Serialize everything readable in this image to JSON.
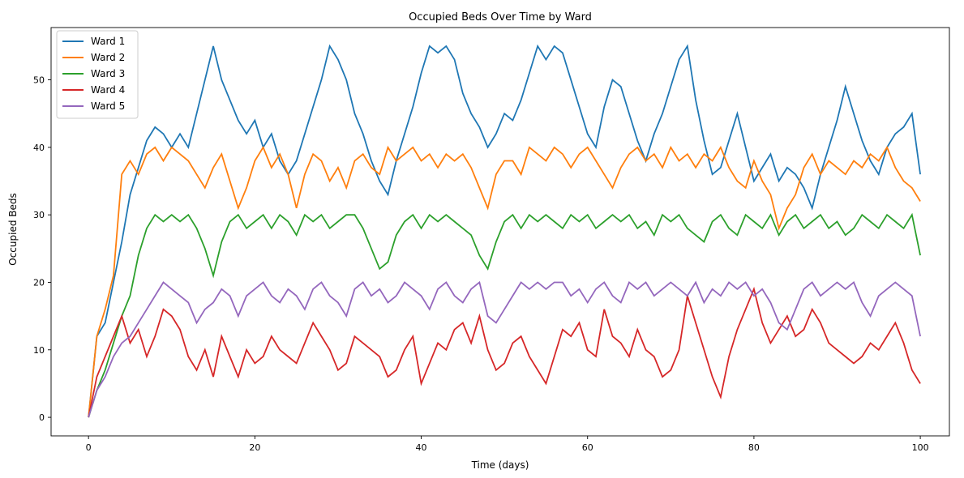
{
  "chart_data": {
    "type": "line",
    "title": "Occupied Beds Over Time by Ward",
    "xlabel": "Time (days)",
    "ylabel": "Occupied Beds",
    "xlim": [
      -4.5,
      103.5
    ],
    "ylim": [
      -2.75,
      57.75
    ],
    "xticks": [
      0,
      20,
      40,
      60,
      80,
      100
    ],
    "yticks": [
      0,
      10,
      20,
      30,
      40,
      50
    ],
    "grid": false,
    "legend_position": "top-left",
    "series": [
      {
        "name": "Ward 1",
        "color": "#1f77b4",
        "x": [
          0,
          1,
          2,
          3,
          4,
          5,
          6,
          7,
          8,
          9,
          10,
          11,
          12,
          13,
          14,
          15,
          16,
          17,
          18,
          19,
          20,
          21,
          22,
          23,
          24,
          25,
          26,
          27,
          28,
          29,
          30,
          31,
          32,
          33,
          34,
          35,
          36,
          37,
          38,
          39,
          40,
          41,
          42,
          43,
          44,
          45,
          46,
          47,
          48,
          49,
          50,
          51,
          52,
          53,
          54,
          55,
          56,
          57,
          58,
          59,
          60,
          61,
          62,
          63,
          64,
          65,
          66,
          67,
          68,
          69,
          70,
          71,
          72,
          73,
          74,
          75,
          76,
          77,
          78,
          79,
          80,
          81,
          82,
          83,
          84,
          85,
          86,
          87,
          88,
          89,
          90,
          91,
          92,
          93,
          94,
          95,
          96,
          97,
          98,
          99,
          100
        ],
        "y": [
          0,
          12,
          14,
          20,
          26,
          33,
          37,
          41,
          43,
          42,
          40,
          42,
          40,
          45,
          50,
          55,
          50,
          47,
          44,
          42,
          44,
          40,
          42,
          38,
          36,
          38,
          42,
          46,
          50,
          55,
          53,
          50,
          45,
          42,
          38,
          35,
          33,
          38,
          42,
          46,
          51,
          55,
          54,
          55,
          53,
          48,
          45,
          43,
          40,
          42,
          45,
          44,
          47,
          51,
          55,
          53,
          55,
          54,
          50,
          46,
          42,
          40,
          46,
          50,
          49,
          45,
          41,
          38,
          42,
          45,
          49,
          53,
          55,
          47,
          41,
          36,
          37,
          41,
          45,
          40,
          35,
          37,
          39,
          35,
          37,
          36,
          34,
          31,
          36,
          40,
          44,
          49,
          45,
          41,
          38,
          36,
          40,
          42,
          43,
          45,
          36
        ]
      },
      {
        "name": "Ward 2",
        "color": "#ff7f0e",
        "x": [
          0,
          1,
          2,
          3,
          4,
          5,
          6,
          7,
          8,
          9,
          10,
          11,
          12,
          13,
          14,
          15,
          16,
          17,
          18,
          19,
          20,
          21,
          22,
          23,
          24,
          25,
          26,
          27,
          28,
          29,
          30,
          31,
          32,
          33,
          34,
          35,
          36,
          37,
          38,
          39,
          40,
          41,
          42,
          43,
          44,
          45,
          46,
          47,
          48,
          49,
          50,
          51,
          52,
          53,
          54,
          55,
          56,
          57,
          58,
          59,
          60,
          61,
          62,
          63,
          64,
          65,
          66,
          67,
          68,
          69,
          70,
          71,
          72,
          73,
          74,
          75,
          76,
          77,
          78,
          79,
          80,
          81,
          82,
          83,
          84,
          85,
          86,
          87,
          88,
          89,
          90,
          91,
          92,
          93,
          94,
          95,
          96,
          97,
          98,
          99,
          100
        ],
        "y": [
          0,
          12,
          16,
          21,
          36,
          38,
          36,
          39,
          40,
          38,
          40,
          39,
          38,
          36,
          34,
          37,
          39,
          35,
          31,
          34,
          38,
          40,
          37,
          39,
          36,
          31,
          36,
          39,
          38,
          35,
          37,
          34,
          38,
          39,
          37,
          36,
          40,
          38,
          39,
          40,
          38,
          39,
          37,
          39,
          38,
          39,
          37,
          34,
          31,
          36,
          38,
          38,
          36,
          40,
          39,
          38,
          40,
          39,
          37,
          39,
          40,
          38,
          36,
          34,
          37,
          39,
          40,
          38,
          39,
          37,
          40,
          38,
          39,
          37,
          39,
          38,
          40,
          37,
          35,
          34,
          38,
          35,
          33,
          28,
          31,
          33,
          37,
          39,
          36,
          38,
          37,
          36,
          38,
          37,
          39,
          38,
          40,
          37,
          35,
          34,
          32
        ]
      },
      {
        "name": "Ward 3",
        "color": "#2ca02c",
        "x": [
          0,
          1,
          2,
          3,
          4,
          5,
          6,
          7,
          8,
          9,
          10,
          11,
          12,
          13,
          14,
          15,
          16,
          17,
          18,
          19,
          20,
          21,
          22,
          23,
          24,
          25,
          26,
          27,
          28,
          29,
          30,
          31,
          32,
          33,
          34,
          35,
          36,
          37,
          38,
          39,
          40,
          41,
          42,
          43,
          44,
          45,
          46,
          47,
          48,
          49,
          50,
          51,
          52,
          53,
          54,
          55,
          56,
          57,
          58,
          59,
          60,
          61,
          62,
          63,
          64,
          65,
          66,
          67,
          68,
          69,
          70,
          71,
          72,
          73,
          74,
          75,
          76,
          77,
          78,
          79,
          80,
          81,
          82,
          83,
          84,
          85,
          86,
          87,
          88,
          89,
          90,
          91,
          92,
          93,
          94,
          95,
          96,
          97,
          98,
          99,
          100
        ],
        "y": [
          0,
          4,
          7,
          11,
          15,
          18,
          24,
          28,
          30,
          29,
          30,
          29,
          30,
          28,
          25,
          21,
          26,
          29,
          30,
          28,
          29,
          30,
          28,
          30,
          29,
          27,
          30,
          29,
          30,
          28,
          29,
          30,
          30,
          28,
          25,
          22,
          23,
          27,
          29,
          30,
          28,
          30,
          29,
          30,
          29,
          28,
          27,
          24,
          22,
          26,
          29,
          30,
          28,
          30,
          29,
          30,
          29,
          28,
          30,
          29,
          30,
          28,
          29,
          30,
          29,
          30,
          28,
          29,
          27,
          30,
          29,
          30,
          28,
          27,
          26,
          29,
          30,
          28,
          27,
          30,
          29,
          28,
          30,
          27,
          29,
          30,
          28,
          29,
          30,
          28,
          29,
          27,
          28,
          30,
          29,
          28,
          30,
          29,
          28,
          30,
          24
        ]
      },
      {
        "name": "Ward 4",
        "color": "#d62728",
        "x": [
          0,
          1,
          2,
          3,
          4,
          5,
          6,
          7,
          8,
          9,
          10,
          11,
          12,
          13,
          14,
          15,
          16,
          17,
          18,
          19,
          20,
          21,
          22,
          23,
          24,
          25,
          26,
          27,
          28,
          29,
          30,
          31,
          32,
          33,
          34,
          35,
          36,
          37,
          38,
          39,
          40,
          41,
          42,
          43,
          44,
          45,
          46,
          47,
          48,
          49,
          50,
          51,
          52,
          53,
          54,
          55,
          56,
          57,
          58,
          59,
          60,
          61,
          62,
          63,
          64,
          65,
          66,
          67,
          68,
          69,
          70,
          71,
          72,
          73,
          74,
          75,
          76,
          77,
          78,
          79,
          80,
          81,
          82,
          83,
          84,
          85,
          86,
          87,
          88,
          89,
          90,
          91,
          92,
          93,
          94,
          95,
          96,
          97,
          98,
          99,
          100
        ],
        "y": [
          0,
          6,
          9,
          12,
          15,
          11,
          13,
          9,
          12,
          16,
          15,
          13,
          9,
          7,
          10,
          6,
          12,
          9,
          6,
          10,
          8,
          9,
          12,
          10,
          9,
          8,
          11,
          14,
          12,
          10,
          7,
          8,
          12,
          11,
          10,
          9,
          6,
          7,
          10,
          12,
          5,
          8,
          11,
          10,
          13,
          14,
          11,
          15,
          10,
          7,
          8,
          11,
          12,
          9,
          7,
          5,
          9,
          13,
          12,
          14,
          10,
          9,
          16,
          12,
          11,
          9,
          13,
          10,
          9,
          6,
          7,
          10,
          18,
          14,
          10,
          6,
          3,
          9,
          13,
          16,
          19,
          14,
          11,
          13,
          15,
          12,
          13,
          16,
          14,
          11,
          10,
          9,
          8,
          9,
          11,
          10,
          12,
          14,
          11,
          7,
          5
        ]
      },
      {
        "name": "Ward 5",
        "color": "#9467bd",
        "x": [
          0,
          1,
          2,
          3,
          4,
          5,
          6,
          7,
          8,
          9,
          10,
          11,
          12,
          13,
          14,
          15,
          16,
          17,
          18,
          19,
          20,
          21,
          22,
          23,
          24,
          25,
          26,
          27,
          28,
          29,
          30,
          31,
          32,
          33,
          34,
          35,
          36,
          37,
          38,
          39,
          40,
          41,
          42,
          43,
          44,
          45,
          46,
          47,
          48,
          49,
          50,
          51,
          52,
          53,
          54,
          55,
          56,
          57,
          58,
          59,
          60,
          61,
          62,
          63,
          64,
          65,
          66,
          67,
          68,
          69,
          70,
          71,
          72,
          73,
          74,
          75,
          76,
          77,
          78,
          79,
          80,
          81,
          82,
          83,
          84,
          85,
          86,
          87,
          88,
          89,
          90,
          91,
          92,
          93,
          94,
          95,
          96,
          97,
          98,
          99,
          100
        ],
        "y": [
          0,
          4,
          6,
          9,
          11,
          12,
          14,
          16,
          18,
          20,
          19,
          18,
          17,
          14,
          16,
          17,
          19,
          18,
          15,
          18,
          19,
          20,
          18,
          17,
          19,
          18,
          16,
          19,
          20,
          18,
          17,
          15,
          19,
          20,
          18,
          19,
          17,
          18,
          20,
          19,
          18,
          16,
          19,
          20,
          18,
          17,
          19,
          20,
          15,
          14,
          16,
          18,
          20,
          19,
          20,
          19,
          20,
          20,
          18,
          19,
          17,
          19,
          20,
          18,
          17,
          20,
          19,
          20,
          18,
          19,
          20,
          19,
          18,
          20,
          17,
          19,
          18,
          20,
          19,
          20,
          18,
          19,
          17,
          14,
          13,
          16,
          19,
          20,
          18,
          19,
          20,
          19,
          20,
          17,
          15,
          18,
          19,
          20,
          19,
          18,
          12
        ]
      }
    ]
  }
}
